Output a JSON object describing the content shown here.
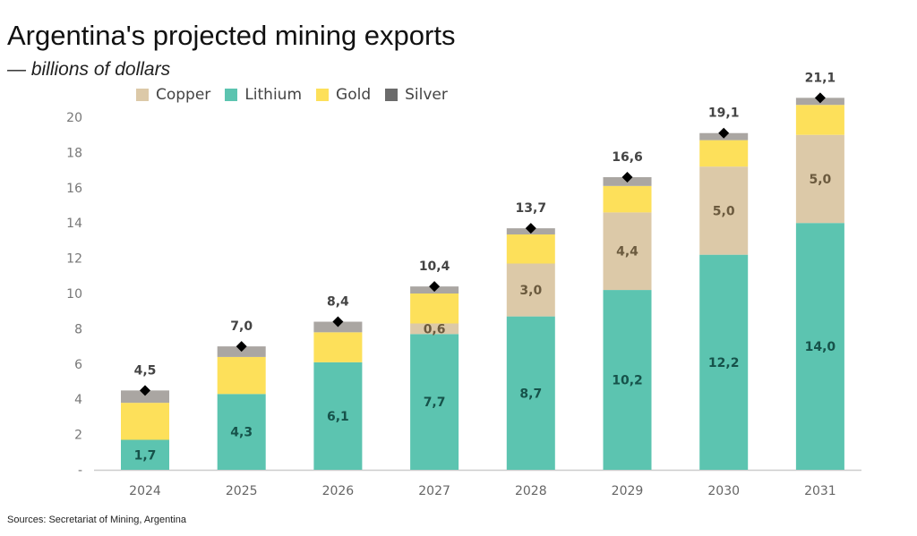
{
  "title": "Argentina's projected mining exports",
  "subtitle": "— billions of dollars",
  "source": "Sources: Secretariat of Mining, Argentina",
  "chart_data": {
    "type": "bar",
    "stacked": true,
    "categories": [
      "2024",
      "2025",
      "2026",
      "2027",
      "2028",
      "2029",
      "2030",
      "2031"
    ],
    "series": [
      {
        "name": "Lithium",
        "color": "#5cc4b0",
        "values": [
          1.7,
          4.3,
          6.1,
          7.7,
          8.7,
          10.2,
          12.2,
          14.0
        ],
        "labels": [
          "1,7",
          "4,3",
          "6,1",
          "7,7",
          "8,7",
          "10,2",
          "12,2",
          "14,0"
        ]
      },
      {
        "name": "Copper",
        "color": "#dcc9a8",
        "values": [
          0,
          0,
          0,
          0.6,
          3.0,
          4.4,
          5.0,
          5.0
        ],
        "labels": [
          "",
          "",
          "",
          "0,6",
          "3,0",
          "4,4",
          "5,0",
          "5,0"
        ]
      },
      {
        "name": "Gold",
        "color": "#fde05a",
        "values": [
          2.1,
          2.1,
          1.7,
          1.7,
          1.65,
          1.5,
          1.5,
          1.7
        ]
      },
      {
        "name": "Silver",
        "color": "#aaa6a2",
        "values": [
          0.7,
          0.6,
          0.6,
          0.4,
          0.35,
          0.5,
          0.4,
          0.4
        ]
      }
    ],
    "totals": [
      4.5,
      7.0,
      8.4,
      10.4,
      13.7,
      16.6,
      19.1,
      21.1
    ],
    "total_labels": [
      "4,5",
      "7,0",
      "8,4",
      "10,4",
      "13,7",
      "16,6",
      "19,1",
      "21,1"
    ],
    "legend": [
      {
        "name": "Copper",
        "color": "#dcc9a8"
      },
      {
        "name": "Lithium",
        "color": "#5cc4b0"
      },
      {
        "name": "Gold",
        "color": "#fde05a"
      },
      {
        "name": "Silver",
        "color": "#6b6b6b"
      }
    ],
    "legend_position": "top",
    "ylim": [
      0,
      21
    ],
    "yticks": [
      0,
      2,
      4,
      6,
      8,
      10,
      12,
      14,
      16,
      18,
      20
    ],
    "ytick_labels": [
      "-",
      "2",
      "4",
      "6",
      "8",
      "10",
      "12",
      "14",
      "16",
      "18",
      "20"
    ],
    "grid": false,
    "xlabel": "",
    "ylabel": ""
  }
}
